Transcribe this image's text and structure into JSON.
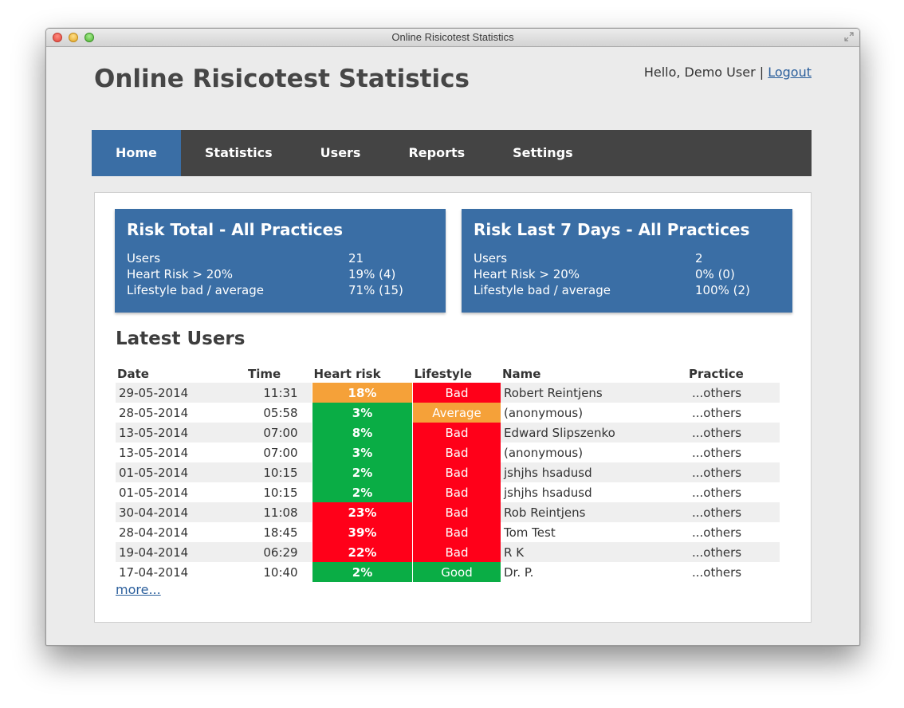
{
  "window": {
    "title": "Online Risicotest Statistics"
  },
  "header": {
    "title": "Online Risicotest Statistics",
    "greeting": "Hello, Demo User",
    "separator": " | ",
    "logout_label": "Logout"
  },
  "nav": {
    "items": [
      {
        "label": "Home",
        "active": true
      },
      {
        "label": "Statistics",
        "active": false
      },
      {
        "label": "Users",
        "active": false
      },
      {
        "label": "Reports",
        "active": false
      },
      {
        "label": "Settings",
        "active": false
      }
    ]
  },
  "cards": [
    {
      "title": "Risk Total - All Practices",
      "rows": [
        {
          "label": "Users",
          "value": "21"
        },
        {
          "label": "Heart Risk > 20%",
          "value": "19% (4)"
        },
        {
          "label": "Lifestyle bad / average",
          "value": "71% (15)"
        }
      ]
    },
    {
      "title": "Risk Last 7 Days - All Practices",
      "rows": [
        {
          "label": "Users",
          "value": "2"
        },
        {
          "label": "Heart Risk > 20%",
          "value": "0% (0)"
        },
        {
          "label": "Lifestyle bad / average",
          "value": "100% (2)"
        }
      ]
    }
  ],
  "latest_users": {
    "title": "Latest Users",
    "columns": [
      "Date",
      "Time",
      "Heart risk",
      "Lifestyle",
      "Name",
      "Practice"
    ],
    "rows": [
      {
        "date": "29-05-2014",
        "time": "11:31",
        "risk": "18%",
        "risk_level": "medium",
        "lifestyle": "Bad",
        "name": "Robert Reintjens",
        "practice": "...others"
      },
      {
        "date": "28-05-2014",
        "time": "05:58",
        "risk": "3%",
        "risk_level": "low",
        "lifestyle": "Average",
        "name": "(anonymous)",
        "practice": "...others"
      },
      {
        "date": "13-05-2014",
        "time": "07:00",
        "risk": "8%",
        "risk_level": "low",
        "lifestyle": "Bad",
        "name": "Edward Slipszenko",
        "practice": "...others"
      },
      {
        "date": "13-05-2014",
        "time": "07:00",
        "risk": "3%",
        "risk_level": "low",
        "lifestyle": "Bad",
        "name": "(anonymous)",
        "practice": "...others"
      },
      {
        "date": "01-05-2014",
        "time": "10:15",
        "risk": "2%",
        "risk_level": "low",
        "lifestyle": "Bad",
        "name": "jshjhs hsadusd",
        "practice": "...others"
      },
      {
        "date": "01-05-2014",
        "time": "10:15",
        "risk": "2%",
        "risk_level": "low",
        "lifestyle": "Bad",
        "name": "jshjhs hsadusd",
        "practice": "...others"
      },
      {
        "date": "30-04-2014",
        "time": "11:08",
        "risk": "23%",
        "risk_level": "high",
        "lifestyle": "Bad",
        "name": "Rob Reintjens",
        "practice": "...others"
      },
      {
        "date": "28-04-2014",
        "time": "18:45",
        "risk": "39%",
        "risk_level": "high",
        "lifestyle": "Bad",
        "name": "Tom Test",
        "practice": "...others"
      },
      {
        "date": "19-04-2014",
        "time": "06:29",
        "risk": "22%",
        "risk_level": "high",
        "lifestyle": "Bad",
        "name": "R K",
        "practice": "...others"
      },
      {
        "date": "17-04-2014",
        "time": "10:40",
        "risk": "2%",
        "risk_level": "low",
        "lifestyle": "Good",
        "name": "Dr. P.",
        "practice": "...others"
      }
    ],
    "more_label": "more..."
  },
  "colors": {
    "nav_bg": "#444444",
    "accent_blue": "#3a6ea5",
    "green": "#0aad45",
    "orange": "#f5a139",
    "red": "#ff0019",
    "link": "#2b5f9c"
  }
}
